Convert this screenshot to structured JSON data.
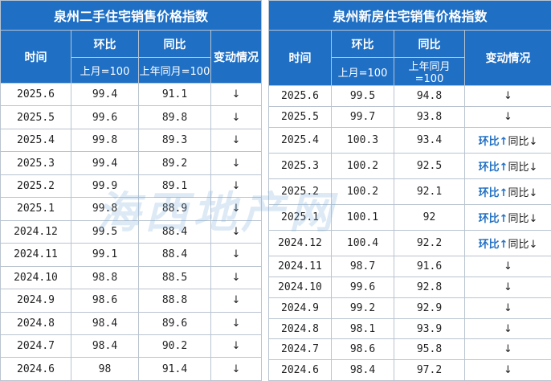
{
  "tables": [
    {
      "title": "泉州二手住宅销售价格指数",
      "headers": {
        "time": "时间",
        "mom": "环比",
        "yoy": "同比",
        "change": "变动情况",
        "mom_base": "上月=100",
        "yoy_base": "上年同月=100"
      },
      "rows": [
        [
          "2025.6",
          99.4,
          91.1,
          [
            "↓"
          ]
        ],
        [
          "2025.5",
          99.6,
          89.8,
          [
            "↓"
          ]
        ],
        [
          "2025.4",
          99.8,
          89.3,
          [
            "↓"
          ]
        ],
        [
          "2025.3",
          99.4,
          89.2,
          [
            "↓"
          ]
        ],
        [
          "2025.2",
          99.9,
          89.1,
          [
            "↓"
          ]
        ],
        [
          "2025.1",
          99.8,
          88.9,
          [
            "↓"
          ]
        ],
        [
          "2024.12",
          99.5,
          88.4,
          [
            "↓"
          ]
        ],
        [
          "2024.11",
          99.1,
          88.4,
          [
            "↓"
          ]
        ],
        [
          "2024.10",
          98.8,
          88.5,
          [
            "↓"
          ]
        ],
        [
          "2024.9",
          98.6,
          88.8,
          [
            "↓"
          ]
        ],
        [
          "2024.8",
          98.4,
          89.6,
          [
            "↓"
          ]
        ],
        [
          "2024.7",
          98.4,
          90.2,
          [
            "↓"
          ]
        ],
        [
          "2024.6",
          98,
          91.4,
          [
            "↓"
          ]
        ]
      ]
    },
    {
      "title": "泉州新房住宅销售价格指数",
      "headers": {
        "time": "时间",
        "mom": "环比",
        "yoy": "同比",
        "change": "变动情况",
        "mom_base": "上月=100",
        "yoy_base": "上年同月=100"
      },
      "rows": [
        [
          "2025.6",
          99.5,
          94.8,
          [
            "↓"
          ]
        ],
        [
          "2025.5",
          99.7,
          93.8,
          [
            "↓"
          ]
        ],
        [
          "2025.4",
          100.3,
          93.4,
          [
            "环比",
            "↑",
            "同比",
            "↓"
          ]
        ],
        [
          "2025.3",
          100.2,
          92.5,
          [
            "环比",
            "↑",
            "同比",
            "↓"
          ]
        ],
        [
          "2025.2",
          100.2,
          92.1,
          [
            "环比",
            "↑",
            "同比",
            "↓"
          ]
        ],
        [
          "2025.1",
          100.1,
          92,
          [
            "环比",
            "↑",
            "同比",
            "↓"
          ]
        ],
        [
          "2024.12",
          100.4,
          92.2,
          [
            "环比",
            "↑",
            "同比",
            "↓"
          ]
        ],
        [
          "2024.11",
          98.7,
          91.6,
          [
            "↓"
          ]
        ],
        [
          "2024.10",
          99.6,
          92.8,
          [
            "↓"
          ]
        ],
        [
          "2024.9",
          99.2,
          92.9,
          [
            "↓"
          ]
        ],
        [
          "2024.8",
          98.1,
          93.9,
          [
            "↓"
          ]
        ],
        [
          "2024.7",
          98.6,
          95.8,
          [
            "↓"
          ]
        ],
        [
          "2024.6",
          98.4,
          97.2,
          [
            "↓"
          ]
        ]
      ]
    }
  ],
  "watermark": "海西地产网"
}
